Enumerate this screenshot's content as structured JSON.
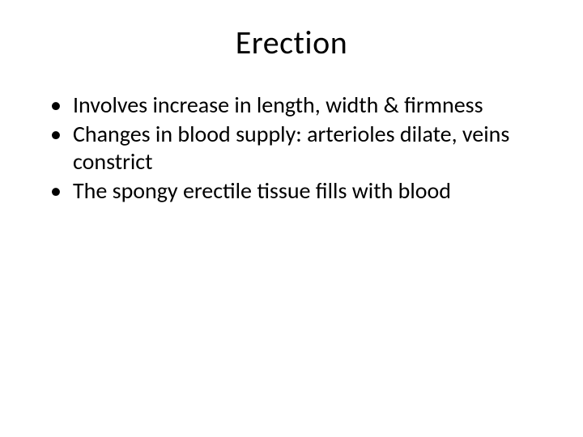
{
  "slide": {
    "title": "Erection",
    "bullets": [
      "Involves increase in length, width & firmness",
      "Changes in blood supply: arterioles dilate, veins constrict",
      "The spongy erectile tissue fills with blood"
    ]
  },
  "style": {
    "background_color": "#ffffff",
    "text_color": "#000000",
    "title_fontsize": 40,
    "body_fontsize": 28,
    "font_family": "Calibri"
  }
}
